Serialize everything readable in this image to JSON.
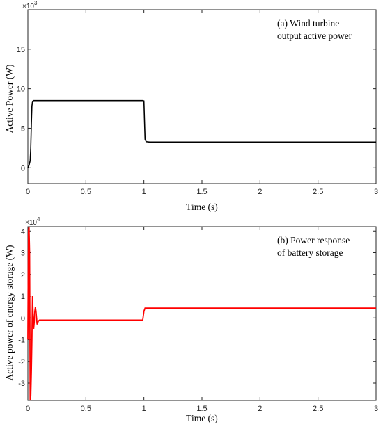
{
  "chart_data": [
    {
      "type": "line",
      "annotation_lines": [
        "(a) Wind turbine",
        "output active power"
      ],
      "xlabel": "Time (s)",
      "ylabel": "Active Power (W)",
      "exponent_label": "×10",
      "exponent_power": "3",
      "xlim": [
        0,
        3
      ],
      "ylim": [
        -2,
        20
      ],
      "xticks": [
        0,
        0.5,
        1,
        1.5,
        2,
        2.5,
        3
      ],
      "xtick_labels": [
        "0",
        "0.5",
        "1",
        "1.5",
        "2",
        "2.5",
        "3"
      ],
      "yticks": [
        0,
        5,
        10,
        15
      ],
      "ytick_labels": [
        "0",
        "5",
        "10",
        "15"
      ],
      "grid": false,
      "color": "#000000",
      "series": [
        {
          "x": [
            0,
            0.01,
            0.02,
            0.025,
            0.03,
            0.035,
            0.04,
            0.05,
            0.06,
            0.99,
            1.0,
            1.005,
            1.01,
            1.02,
            1.05,
            3.0
          ],
          "y": [
            0,
            0.3,
            0.9,
            2.5,
            5.5,
            7.8,
            8.4,
            8.5,
            8.5,
            8.5,
            8.45,
            6.0,
            3.6,
            3.3,
            3.25,
            3.25
          ]
        }
      ]
    },
    {
      "type": "line",
      "annotation_lines": [
        "(b) Power response",
        "of battery storage"
      ],
      "xlabel": "Time (s)",
      "ylabel": "Active power of energy storage (W)",
      "exponent_label": "×10",
      "exponent_power": "4",
      "xlim": [
        0,
        3
      ],
      "ylim": [
        -3.8,
        4.2
      ],
      "xticks": [
        0,
        0.5,
        1,
        1.5,
        2,
        2.5,
        3
      ],
      "xtick_labels": [
        "0",
        "0.5",
        "1",
        "1.5",
        "2",
        "2.5",
        "3"
      ],
      "yticks": [
        -3,
        -2,
        -1,
        0,
        1,
        2,
        3,
        4
      ],
      "ytick_labels": [
        "-3",
        "-2",
        "-1",
        "0",
        "1",
        "2",
        "3",
        "4"
      ],
      "grid": false,
      "color": "#ff0000",
      "series": [
        {
          "x": [
            0,
            0.005,
            0.01,
            0.015,
            0.02,
            0.025,
            0.03,
            0.035,
            0.04,
            0.045,
            0.05,
            0.055,
            0.06,
            0.065,
            0.07,
            0.08,
            0.09,
            0.1,
            0.12,
            0.15,
            0.2,
            0.3,
            0.5,
            0.8,
            0.99,
            1.0,
            1.01,
            1.02,
            1.05,
            1.2,
            1.5,
            2.0,
            2.5,
            3.0
          ],
          "y": [
            -1.0,
            4.0,
            4.2,
            3.0,
            -3.8,
            -3.6,
            -2.5,
            -1.0,
            1.0,
            0.2,
            -0.5,
            -0.2,
            0.3,
            0.5,
            0.3,
            -0.3,
            -0.15,
            -0.1,
            -0.1,
            -0.1,
            -0.1,
            -0.1,
            -0.1,
            -0.1,
            -0.1,
            0.3,
            0.45,
            0.45,
            0.45,
            0.45,
            0.45,
            0.45,
            0.45,
            0.45
          ]
        }
      ]
    }
  ]
}
